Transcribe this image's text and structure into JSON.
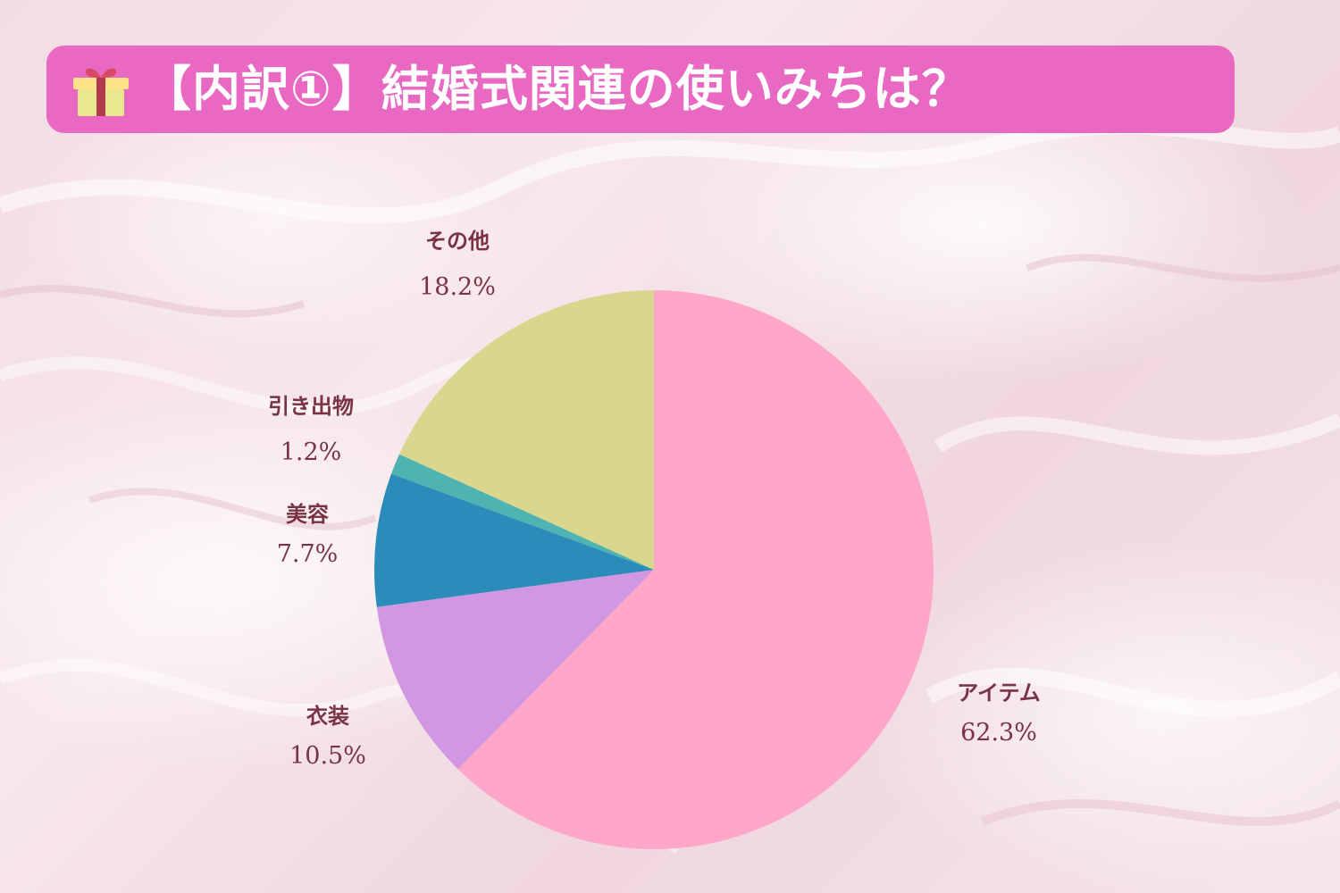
{
  "title": "【内訳①】結婚式関連の使いみちは？",
  "icons": {
    "title_icon": "gift-icon"
  },
  "colors": {
    "banner": "#e868c2",
    "title_text": "#ffffff",
    "label_text": "#7a3344"
  },
  "chart_data": {
    "type": "pie",
    "start_angle_deg": 0,
    "direction": "clockwise",
    "slices": [
      {
        "label": "アイテム",
        "value": 62.3,
        "value_label": "62.3%",
        "color": "#ffa6c9"
      },
      {
        "label": "衣装",
        "value": 10.5,
        "value_label": "10.5%",
        "color": "#d197e3"
      },
      {
        "label": "美容",
        "value": 7.7,
        "value_label": "7.7%",
        "color": "#2b8bb9"
      },
      {
        "label": "引き出物",
        "value": 1.2,
        "value_label": "1.2%",
        "color": "#4fb3b1"
      },
      {
        "label": "その他",
        "value": 18.2,
        "value_label": "18.2%",
        "color": "#d8d78d"
      }
    ]
  }
}
